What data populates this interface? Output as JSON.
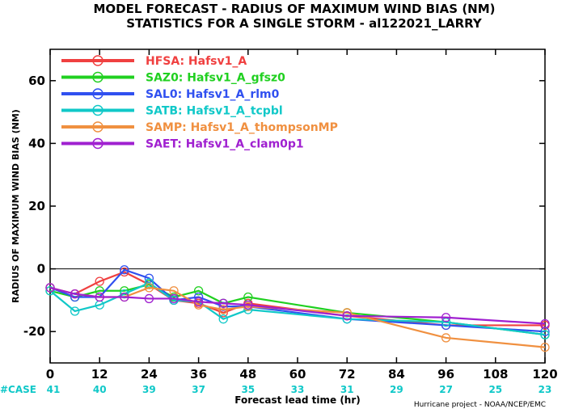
{
  "chart_data": {
    "type": "line",
    "title": "MODEL FORECAST - RADIUS OF MAXIMUM WIND BIAS (NM)",
    "subtitle": "STATISTICS FOR A SINGLE STORM - al122021_LARRY",
    "xlabel": "Forecast lead time (hr)",
    "ylabel": "RADIUS OF MAXIMUM WIND BIAS (NM)",
    "xlim": [
      0,
      120
    ],
    "ylim": [
      -30,
      70
    ],
    "x_ticks": [
      "0",
      "12",
      "24",
      "36",
      "48",
      "60",
      "72",
      "84",
      "96",
      "108",
      "120"
    ],
    "y_ticks": [
      "-20",
      "0",
      "20",
      "40",
      "60"
    ],
    "x": [
      0,
      6,
      12,
      18,
      24,
      30,
      36,
      42,
      48,
      72,
      96,
      120
    ],
    "legend_position": "top-left",
    "series": [
      {
        "name": "HFSA: Hafsv1_A",
        "color": "#f04040",
        "values": [
          -6,
          -8,
          -4,
          -1,
          -5,
          -10,
          -11,
          -14,
          -11,
          -15,
          -18,
          -18
        ]
      },
      {
        "name": "SAZ0: Hafsv1_A_gfsz0",
        "color": "#20d020",
        "values": [
          -7,
          -9,
          -7,
          -7,
          -5,
          -9,
          -7,
          -11,
          -9,
          -14,
          -17,
          -21
        ]
      },
      {
        "name": "SAL0: Hafsv1_A_rlm0",
        "color": "#3050f0",
        "values": [
          -6,
          -9,
          -9,
          -0.3,
          -3,
          -10,
          -9,
          -12,
          -12,
          -16,
          -18,
          -20
        ]
      },
      {
        "name": "SATB: Hafsv1_A_tcpbl",
        "color": "#10c8c8",
        "values": [
          -7,
          -13.5,
          -11.5,
          -8,
          -4.5,
          -10,
          -10.5,
          -16,
          -13,
          -16,
          -17,
          -21
        ]
      },
      {
        "name": "SAMP: Hafsv1_A_thompsonMP",
        "color": "#f09040",
        "values": [
          -6,
          -8,
          -9,
          -9,
          -6,
          -7,
          -11.5,
          -13,
          -12,
          -14,
          -22,
          -25
        ]
      },
      {
        "name": "SAET: Hafsv1_A_clam0p1",
        "color": "#a020d0",
        "values": [
          -6,
          -8,
          -9,
          -9,
          -9.5,
          -9.5,
          -10.5,
          -11,
          -11.5,
          -15,
          -15.5,
          -17.5
        ]
      }
    ],
    "cases": {
      "label": "#CASE",
      "x": [
        0,
        12,
        24,
        36,
        48,
        60,
        72,
        84,
        96,
        108,
        120
      ],
      "counts": [
        "41",
        "40",
        "39",
        "37",
        "35",
        "33",
        "31",
        "29",
        "27",
        "25",
        "23"
      ]
    },
    "credit": "Hurricane project - NOAA/NCEP/EMC"
  }
}
